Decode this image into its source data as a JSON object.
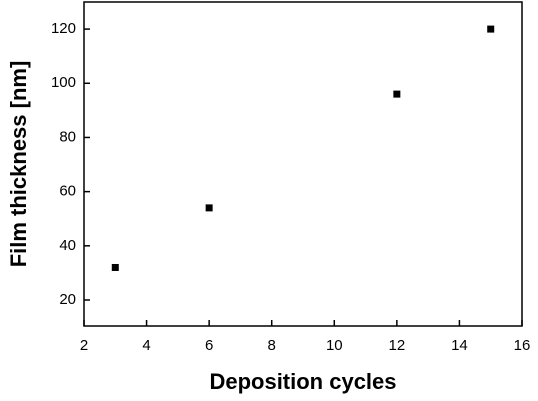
{
  "chart_data": {
    "type": "scatter",
    "x_label": "Deposition cycles",
    "y_label": "Film thickness [nm]",
    "series": [
      {
        "color": "#000000",
        "x": [
          3,
          6,
          12,
          15
        ],
        "values": [
          32,
          54,
          96,
          120
        ]
      }
    ],
    "xlim": [
      2,
      16
    ],
    "xticks": [
      2,
      4,
      6,
      8,
      10,
      12,
      14,
      16
    ],
    "ylim": [
      10.4,
      130
    ],
    "yticks": [
      20,
      40,
      60,
      80,
      100,
      120
    ],
    "grid": false
  }
}
